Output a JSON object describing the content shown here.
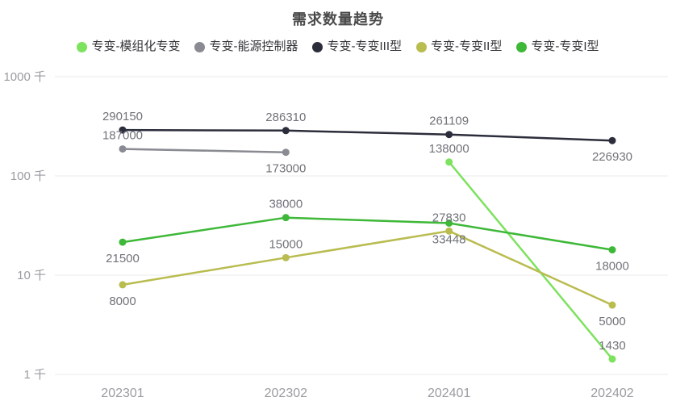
{
  "title": "需求数量趋势",
  "chart_data": {
    "type": "line",
    "title": "需求数量趋势",
    "categories": [
      "202301",
      "202302",
      "202401",
      "202402"
    ],
    "y_axis": {
      "scale": "log",
      "unit": "千",
      "tick_labels": [
        "1000 千",
        "100 千",
        "10 千",
        "1 千"
      ],
      "tick_values": [
        1000000,
        100000,
        10000,
        1000
      ],
      "ylim": [
        1000,
        1000000
      ]
    },
    "legend_position": "top",
    "grid": true,
    "series": [
      {
        "name": "专变-模组化专变",
        "color": "#7de25e",
        "values": [
          null,
          null,
          138000,
          1430
        ],
        "label_positions": [
          null,
          null,
          "top",
          "top"
        ]
      },
      {
        "name": "专变-能源控制器",
        "color": "#8a8b92",
        "values": [
          187000,
          173000,
          null,
          null
        ],
        "label_positions": [
          "top",
          "bottom",
          null,
          null
        ]
      },
      {
        "name": "专变-专变III型",
        "color": "#2b2d3b",
        "values": [
          290150,
          286310,
          261109,
          226930
        ],
        "label_positions": [
          "top",
          "top",
          "top",
          "bottom"
        ]
      },
      {
        "name": "专变-专变II型",
        "color": "#b9bc4f",
        "values": [
          8000,
          15000,
          27830,
          5000
        ],
        "label_positions": [
          "bottom",
          "top",
          "top",
          "bottom"
        ]
      },
      {
        "name": "专变-专变I型",
        "color": "#3eb838",
        "values": [
          21500,
          38000,
          33448,
          18000
        ],
        "label_positions": [
          "bottom",
          "top",
          "bottom",
          "bottom"
        ]
      }
    ]
  }
}
